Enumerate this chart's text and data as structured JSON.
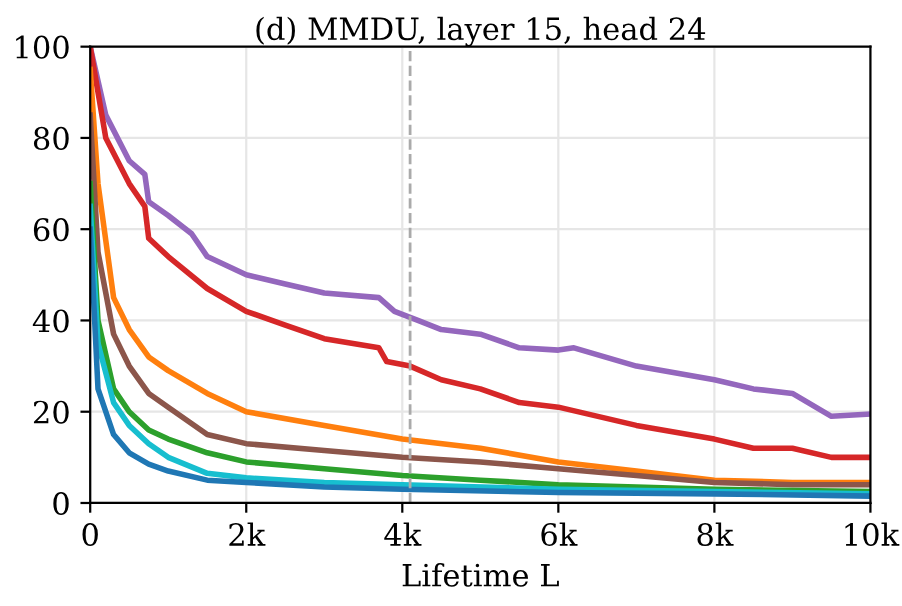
{
  "chart_data": {
    "type": "line",
    "title": "(d) MMDU, layer 15, head 24",
    "xlabel": "Lifetime L",
    "xlim": [
      0,
      10000
    ],
    "ylim": [
      0,
      100
    ],
    "xticks": [
      0,
      {
        "value": 2000,
        "label": "2k"
      },
      {
        "value": 4000,
        "label": "4k"
      },
      {
        "value": 6000,
        "label": "6k"
      },
      {
        "value": 8000,
        "label": "8k"
      },
      {
        "value": 10000,
        "label": "10k"
      }
    ],
    "yticks": [
      0,
      20,
      40,
      60,
      80,
      100
    ],
    "grid": true,
    "line_style": "solid",
    "marker": "none",
    "ref_lines": [
      {
        "axis": "x",
        "value": 4100,
        "color": "#aaaaaa",
        "line_style": "dashed"
      }
    ],
    "series": [
      {
        "color": "#9467bd",
        "x": [
          0,
          200,
          500,
          700,
          750,
          1000,
          1300,
          1500,
          2000,
          2500,
          3000,
          3700,
          3900,
          4200,
          4500,
          5000,
          5500,
          6000,
          6200,
          7000,
          8000,
          8500,
          9000,
          9500,
          10000
        ],
        "values": [
          100,
          85,
          75,
          72,
          66,
          63,
          59,
          54,
          50,
          48,
          46,
          45,
          42,
          40,
          38,
          37,
          34,
          33.5,
          34,
          30,
          27,
          25,
          24,
          19,
          19.5
        ]
      },
      {
        "color": "#d62728",
        "x": [
          0,
          200,
          500,
          700,
          750,
          1000,
          1500,
          2000,
          2500,
          3000,
          3700,
          3800,
          4100,
          4500,
          5000,
          5500,
          6000,
          7000,
          8000,
          8500,
          9000,
          9500,
          10000
        ],
        "values": [
          100,
          80,
          70,
          65,
          58,
          54,
          47,
          42,
          39,
          36,
          34,
          31,
          30,
          27,
          25,
          22,
          21,
          17,
          14,
          12,
          12,
          10,
          10
        ]
      },
      {
        "color": "#ff7f0e",
        "x": [
          0,
          100,
          300,
          500,
          750,
          1000,
          1500,
          2000,
          3000,
          4000,
          5000,
          6000,
          7000,
          8000,
          9000,
          10000
        ],
        "values": [
          95,
          70,
          45,
          38,
          32,
          29,
          24,
          20,
          17,
          14,
          12,
          9,
          7,
          5,
          4.5,
          4.5
        ]
      },
      {
        "color": "#8c564b",
        "x": [
          0,
          100,
          300,
          500,
          750,
          1000,
          1500,
          2000,
          3000,
          4000,
          5000,
          6000,
          7000,
          8000,
          9000,
          10000
        ],
        "values": [
          85,
          55,
          37,
          30,
          24,
          21,
          15,
          13,
          11.5,
          10,
          9,
          7.5,
          6,
          4.5,
          4,
          4
        ]
      },
      {
        "color": "#2ca02c",
        "x": [
          0,
          100,
          300,
          500,
          750,
          1000,
          1500,
          2000,
          3000,
          4000,
          5000,
          6000,
          8000,
          10000
        ],
        "values": [
          70,
          40,
          25,
          20,
          16,
          14,
          11,
          9,
          7.5,
          6,
          5,
          4,
          3,
          2.5
        ]
      },
      {
        "color": "#17becf",
        "x": [
          0,
          100,
          300,
          500,
          750,
          1000,
          1500,
          2000,
          3000,
          4000,
          6000,
          8000,
          10000
        ],
        "values": [
          65,
          35,
          22,
          17,
          13,
          10,
          6.5,
          5.5,
          4.5,
          4,
          3,
          2.5,
          2
        ]
      },
      {
        "color": "#1f77b4",
        "x": [
          0,
          100,
          300,
          500,
          750,
          1000,
          1500,
          2000,
          3000,
          4000,
          6000,
          8000,
          10000
        ],
        "values": [
          60,
          25,
          15,
          11,
          8.5,
          7,
          5,
          4.5,
          3.5,
          3,
          2.3,
          2,
          1.5
        ]
      }
    ]
  }
}
